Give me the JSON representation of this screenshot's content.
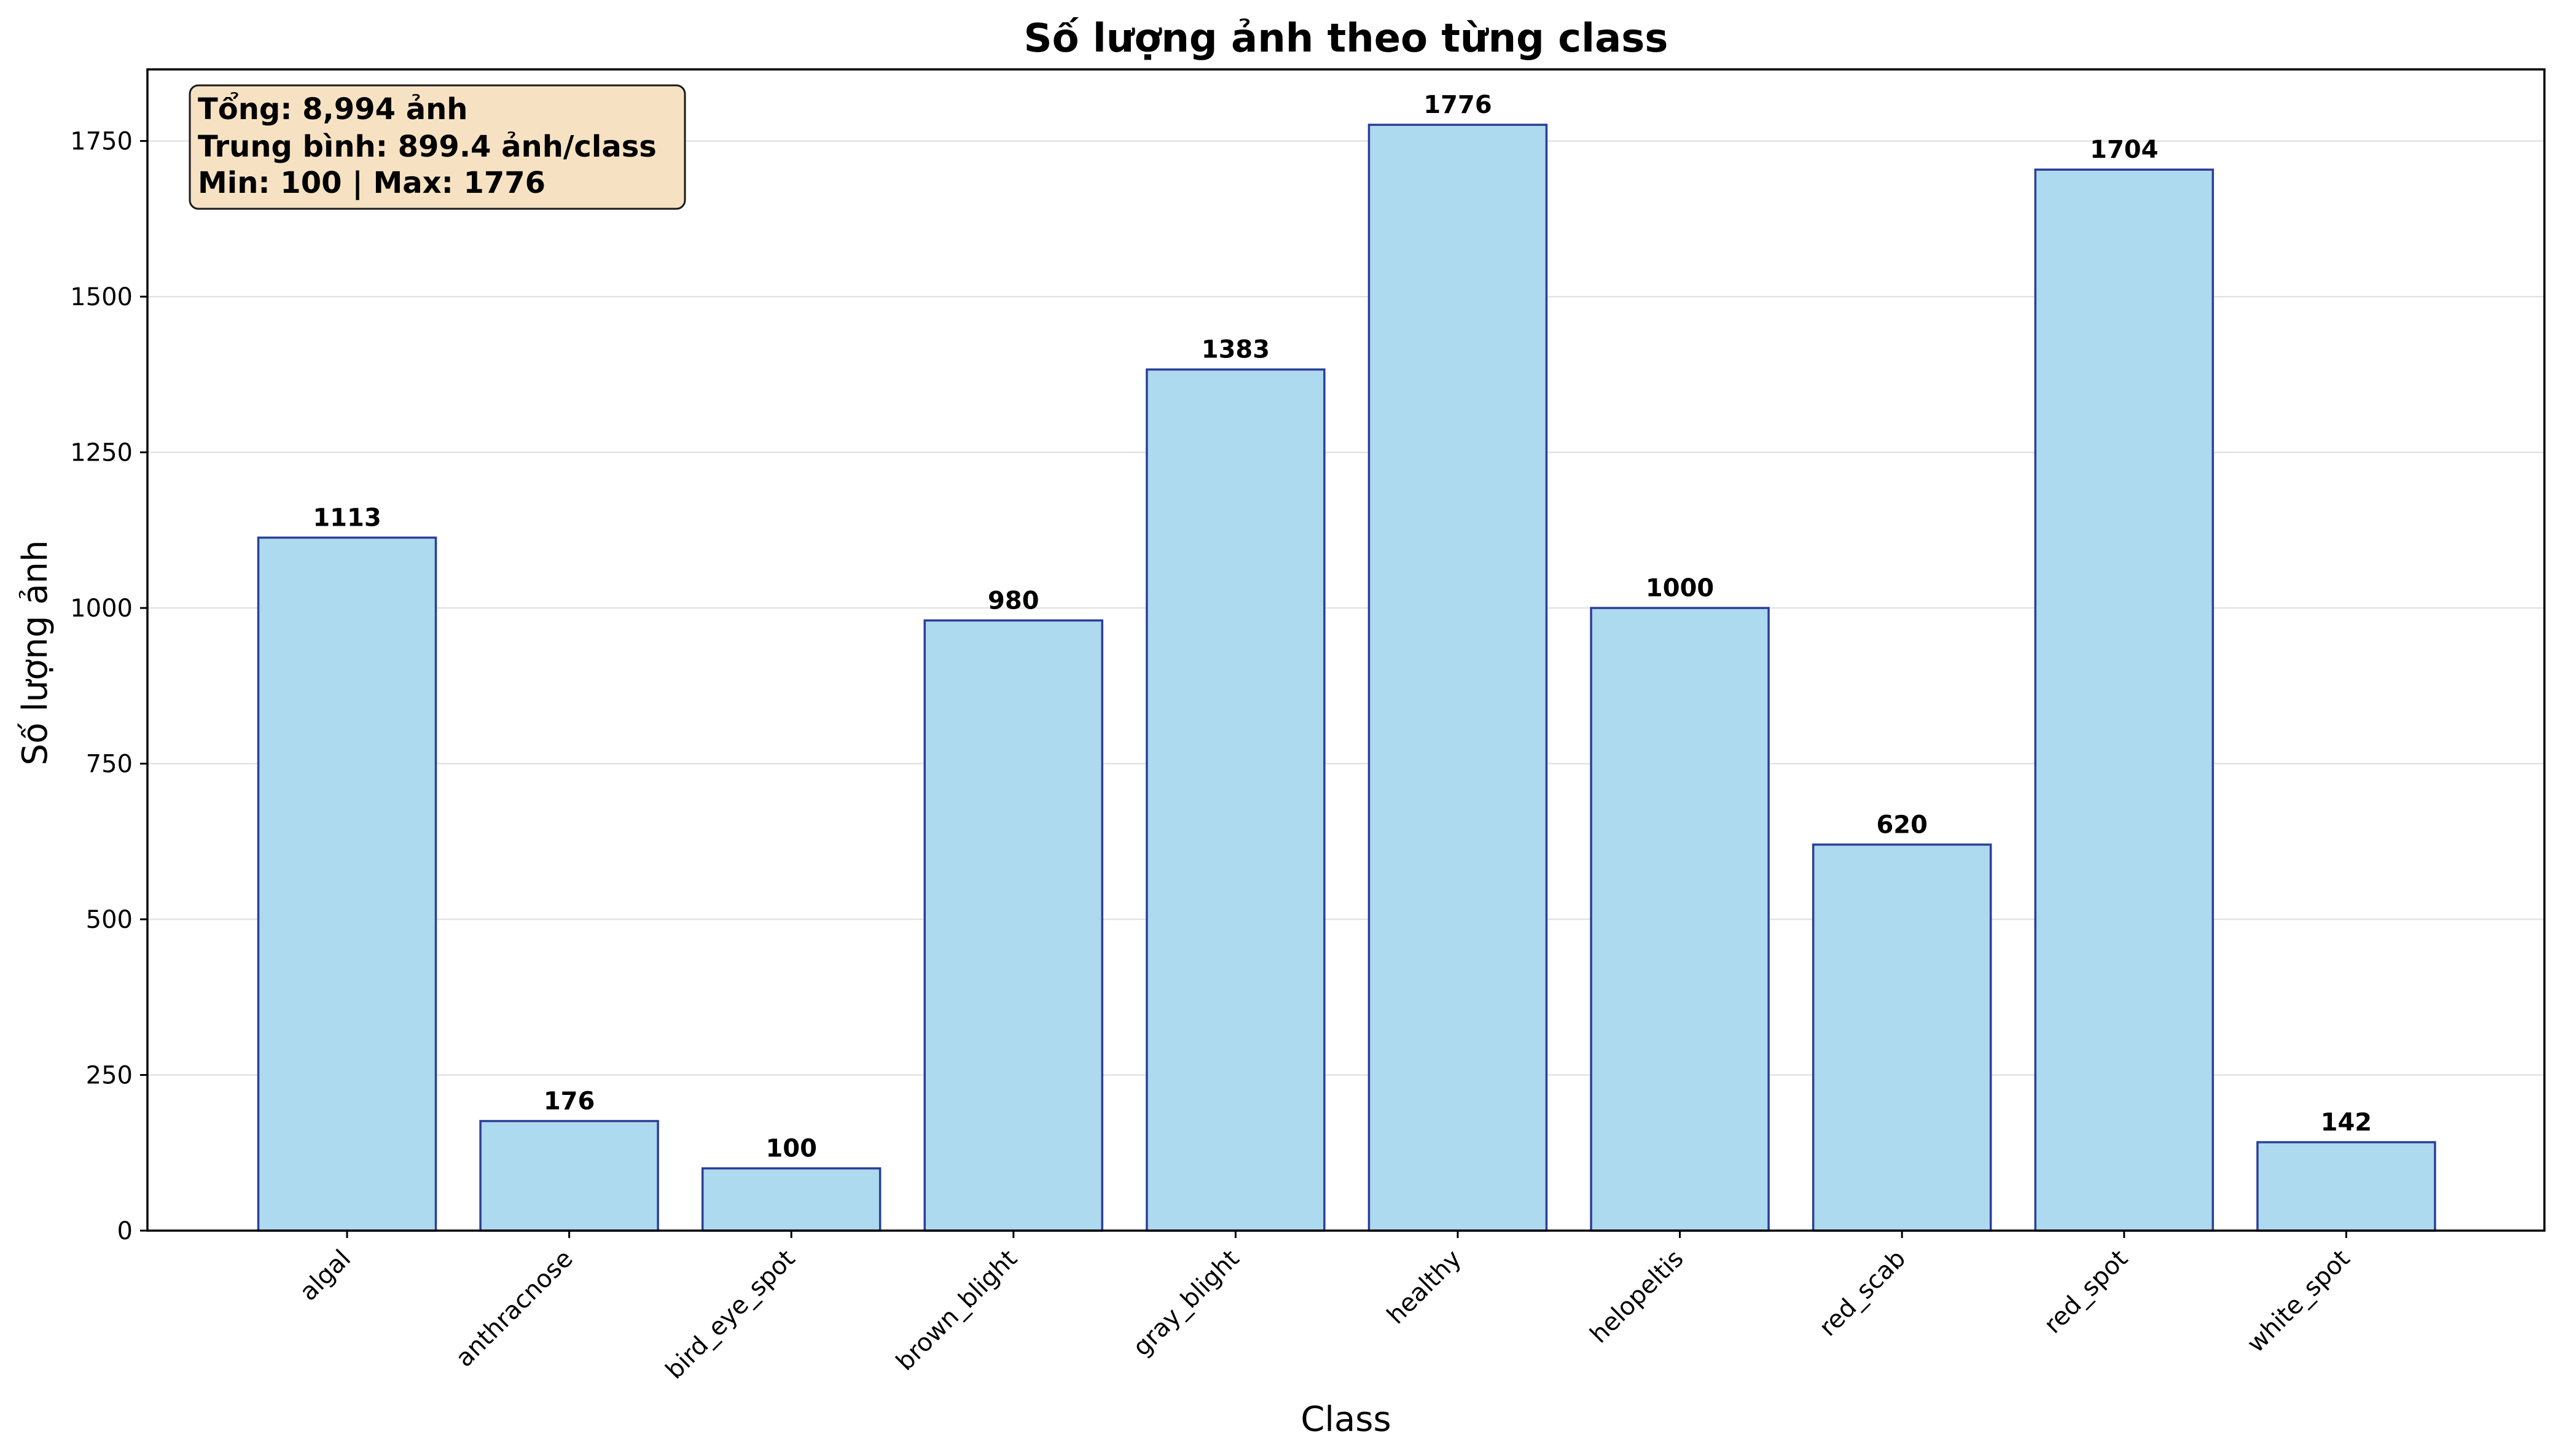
{
  "chart_data": {
    "type": "bar",
    "title": "Số lượng ảnh theo từng class",
    "xlabel": "Class",
    "ylabel": "Số lượng ảnh",
    "categories": [
      "algal",
      "anthracnose",
      "bird_eye_spot",
      "brown_blight",
      "gray_blight",
      "healthy",
      "helopeltis",
      "red_scab",
      "red_spot",
      "white_spot"
    ],
    "values": [
      1113,
      176,
      100,
      980,
      1383,
      1776,
      1000,
      620,
      1704,
      142
    ],
    "data_labels": [
      "1113",
      "176",
      "100",
      "980",
      "1383",
      "1776",
      "1000",
      "620",
      "1704",
      "142"
    ],
    "ylim": [
      0,
      1865
    ],
    "yticks": [
      0,
      250,
      500,
      750,
      1000,
      1250,
      1500,
      1750
    ],
    "ytick_labels": [
      "0",
      "250",
      "500",
      "750",
      "1000",
      "1250",
      "1500",
      "1750"
    ],
    "grid": "horizontal",
    "bar_fill": "#ADDAEE",
    "bar_edge": "#2C3E99",
    "annotation": {
      "lines": [
        "Tổng: 8,994 ảnh",
        "Trung bình: 899.4 ảnh/class",
        "Min: 100 | Max: 1776"
      ],
      "fill": "#F6E2C2",
      "edge": "#1a1a1a",
      "placement": "top-left"
    }
  }
}
